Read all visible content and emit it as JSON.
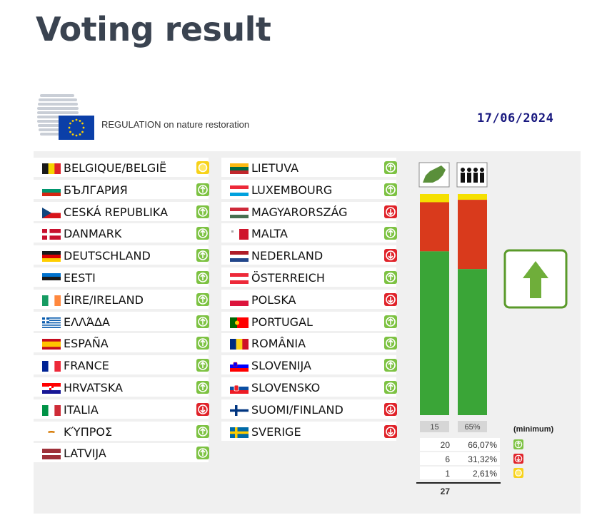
{
  "page_title": "Voting result",
  "regulation": "REGULATION on nature restoration",
  "date": "17/06/2024",
  "colors": {
    "yes": "#3aa537",
    "no": "#d93a1c",
    "abstain": "#f5e000",
    "yes_icon": "#7dc242",
    "no_icon": "#e0232a",
    "abstain_icon": "#f7d21a"
  },
  "countries_left": [
    {
      "name": "BELGIQUE/BELGIË",
      "vote": "abstain",
      "flag": "be"
    },
    {
      "name": "БЪЛГАРИЯ",
      "vote": "yes",
      "flag": "bg"
    },
    {
      "name": "CESKÁ REPUBLIKA",
      "vote": "yes",
      "flag": "cz"
    },
    {
      "name": "DANMARK",
      "vote": "yes",
      "flag": "dk"
    },
    {
      "name": "DEUTSCHLAND",
      "vote": "yes",
      "flag": "de"
    },
    {
      "name": "EESTI",
      "vote": "yes",
      "flag": "ee"
    },
    {
      "name": "ÉIRE/IRELAND",
      "vote": "yes",
      "flag": "ie"
    },
    {
      "name": "ΕΛΛΆΔΑ",
      "vote": "yes",
      "flag": "gr"
    },
    {
      "name": "ESPAÑA",
      "vote": "yes",
      "flag": "es"
    },
    {
      "name": "FRANCE",
      "vote": "yes",
      "flag": "fr"
    },
    {
      "name": "HRVATSKA",
      "vote": "yes",
      "flag": "hr"
    },
    {
      "name": "ITALIA",
      "vote": "no",
      "flag": "it"
    },
    {
      "name": "ΚΎΠΡΟΣ",
      "vote": "yes",
      "flag": "cy"
    },
    {
      "name": "LATVIJA",
      "vote": "yes",
      "flag": "lv"
    }
  ],
  "countries_right": [
    {
      "name": "LIETUVA",
      "vote": "yes",
      "flag": "lt"
    },
    {
      "name": "LUXEMBOURG",
      "vote": "yes",
      "flag": "lu"
    },
    {
      "name": "MAGYARORSZÁG",
      "vote": "no",
      "flag": "hu"
    },
    {
      "name": "MALTA",
      "vote": "yes",
      "flag": "mt"
    },
    {
      "name": "NEDERLAND",
      "vote": "no",
      "flag": "nl"
    },
    {
      "name": "ÖSTERREICH",
      "vote": "yes",
      "flag": "at"
    },
    {
      "name": "POLSKA",
      "vote": "no",
      "flag": "pl"
    },
    {
      "name": "PORTUGAL",
      "vote": "yes",
      "flag": "pt"
    },
    {
      "name": "ROMÂNIA",
      "vote": "yes",
      "flag": "ro"
    },
    {
      "name": "SLOVENIJA",
      "vote": "yes",
      "flag": "si"
    },
    {
      "name": "SLOVENSKO",
      "vote": "yes",
      "flag": "sk"
    },
    {
      "name": "SUOMI/FINLAND",
      "vote": "no",
      "flag": "fi"
    },
    {
      "name": "SVERIGE",
      "vote": "no",
      "flag": "se"
    }
  ],
  "chart_data": {
    "type": "bar",
    "stacked": true,
    "categories": [
      "member states",
      "population"
    ],
    "series": [
      {
        "name": "yes",
        "values": [
          20,
          66.07
        ]
      },
      {
        "name": "no",
        "values": [
          6,
          31.32
        ]
      },
      {
        "name": "abstain",
        "values": [
          1,
          2.61
        ]
      }
    ],
    "normalized": true,
    "minimum_labels": [
      "15",
      "65%"
    ],
    "minimum_caption": "(minimum)",
    "result": "adopted"
  },
  "summary": {
    "rows": [
      {
        "count": "20",
        "percent": "66,07%",
        "vote": "yes"
      },
      {
        "count": "6",
        "percent": "31,32%",
        "vote": "no"
      },
      {
        "count": "1",
        "percent": "2,61%",
        "vote": "abstain"
      }
    ],
    "total": "27"
  }
}
